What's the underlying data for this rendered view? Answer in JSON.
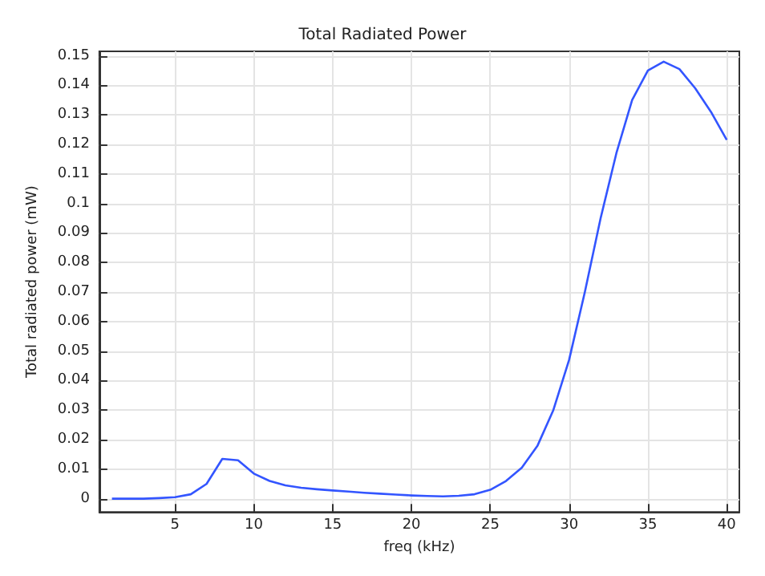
{
  "chart_data": {
    "type": "line",
    "title": "Total Radiated Power",
    "xlabel": "freq (kHz)",
    "ylabel": "Total radiated power (mW)",
    "x": [
      1,
      2,
      3,
      4,
      5,
      6,
      7,
      8,
      9,
      10,
      11,
      12,
      13,
      14,
      15,
      16,
      17,
      18,
      19,
      20,
      21,
      22,
      23,
      24,
      25,
      26,
      27,
      28,
      29,
      30,
      31,
      32,
      33,
      34,
      35,
      36,
      37,
      38,
      39,
      40
    ],
    "series": [
      {
        "color": "#3355ff",
        "values": [
          0,
          0,
          0,
          0.0002,
          0.0005,
          0.0015,
          0.005,
          0.0135,
          0.013,
          0.0085,
          0.006,
          0.0045,
          0.0037,
          0.0032,
          0.0028,
          0.0024,
          0.002,
          0.0017,
          0.0014,
          0.0011,
          0.0009,
          0.0008,
          0.001,
          0.0015,
          0.003,
          0.006,
          0.0105,
          0.018,
          0.03,
          0.047,
          0.07,
          0.095,
          0.117,
          0.135,
          0.145,
          0.148,
          0.1455,
          0.139,
          0.131,
          0.1215
        ]
      }
    ],
    "xlim": [
      0.2,
      40.8
    ],
    "ylim": [
      -0.0045,
      0.1515
    ],
    "xticks": [
      5,
      10,
      15,
      20,
      25,
      30,
      35,
      40
    ],
    "yticks": [
      0,
      0.01,
      0.02,
      0.03,
      0.04,
      0.05,
      0.06,
      0.07,
      0.08,
      0.09,
      0.1,
      0.11,
      0.12,
      0.13,
      0.14,
      0.15
    ],
    "grid": true,
    "marker": "none",
    "line_style": "solid"
  }
}
